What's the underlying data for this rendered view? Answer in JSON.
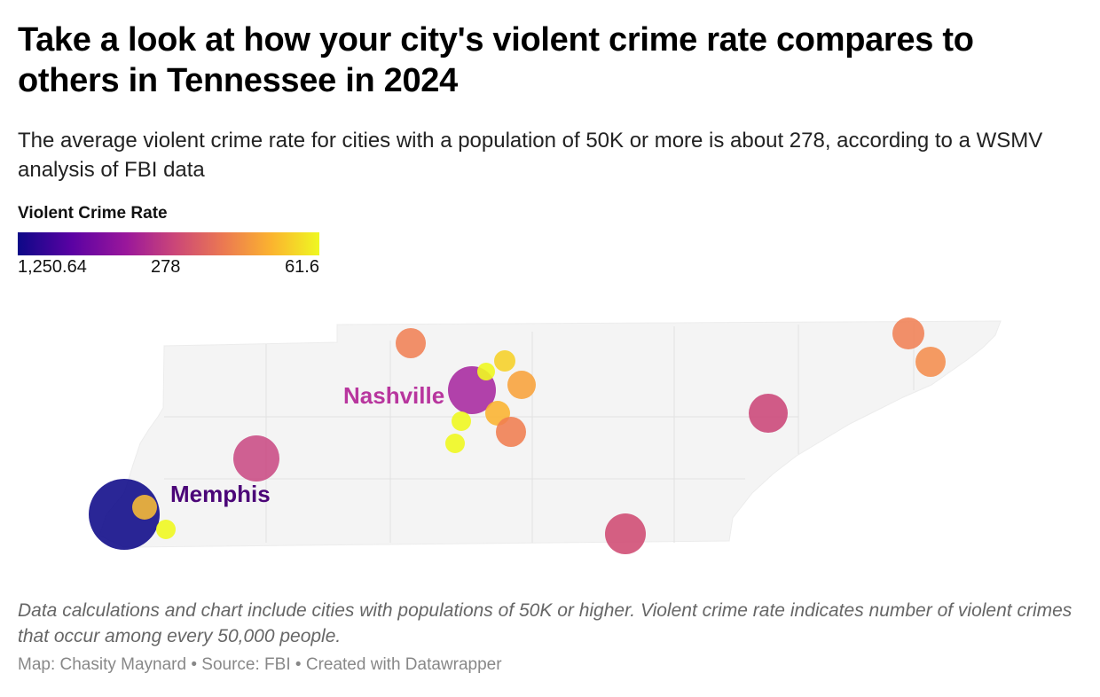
{
  "title": "Take a look at how your city's violent crime rate compares to others in Tennessee in 2024",
  "subtitle": "The average violent crime rate for cities with a population of 50K or more is about 278, according to a WSMV analysis of FBI data",
  "legend": {
    "title": "Violent Crime Rate",
    "high_label": "1,250.64",
    "mid_label": "278",
    "low_label": "61.6",
    "colors": [
      "#0d0887",
      "#9a179b",
      "#cb4678",
      "#eb7852",
      "#fbb32f",
      "#eff821"
    ]
  },
  "map": {
    "region": "Tennessee",
    "labels": [
      {
        "text": "Nashville",
        "color": "#b8369e"
      },
      {
        "text": "Memphis",
        "color": "#4b0578"
      }
    ]
  },
  "notes": "Data calculations and chart include cities with populations of 50K or higher. Violent crime rate indicates number of violent crimes that occur among every 50,000 people.",
  "byline": {
    "map_credit": "Map: Chasity Maynard",
    "source": "Source: FBI",
    "tool": "Created with Datawrapper",
    "separator": " • "
  }
}
